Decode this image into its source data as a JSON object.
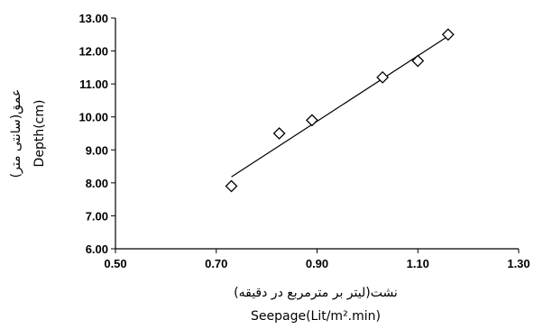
{
  "chart_data": {
    "type": "scatter",
    "title": "",
    "xlabel": "Seepage(Lit/m².min)",
    "xlabel_fa": "نشت(لیتر بر مترمربع در دقیقه)",
    "ylabel": "Depth(cm)",
    "ylabel_fa": "عمق(سانتی متر)",
    "xlim": [
      0.5,
      1.3
    ],
    "ylim": [
      6.0,
      13.0
    ],
    "x_ticks": [
      "0.50",
      "0.70",
      "0.90",
      "1.10",
      "1.30"
    ],
    "y_ticks": [
      "6.00",
      "7.00",
      "8.00",
      "9.00",
      "10.00",
      "11.00",
      "12.00",
      "13.00"
    ],
    "grid": false,
    "legend": false,
    "marker": "diamond-open",
    "series": [
      {
        "x": [
          0.73,
          0.825,
          0.89,
          1.03,
          1.1,
          1.16
        ],
        "y": [
          7.9,
          9.5,
          9.9,
          11.2,
          11.7,
          12.5
        ]
      }
    ],
    "trendline": {
      "x": [
        0.73,
        1.16
      ],
      "y": [
        8.18,
        12.45
      ]
    },
    "colors": {
      "marker": "#000000",
      "line": "#000000",
      "axis": "#000000"
    }
  }
}
